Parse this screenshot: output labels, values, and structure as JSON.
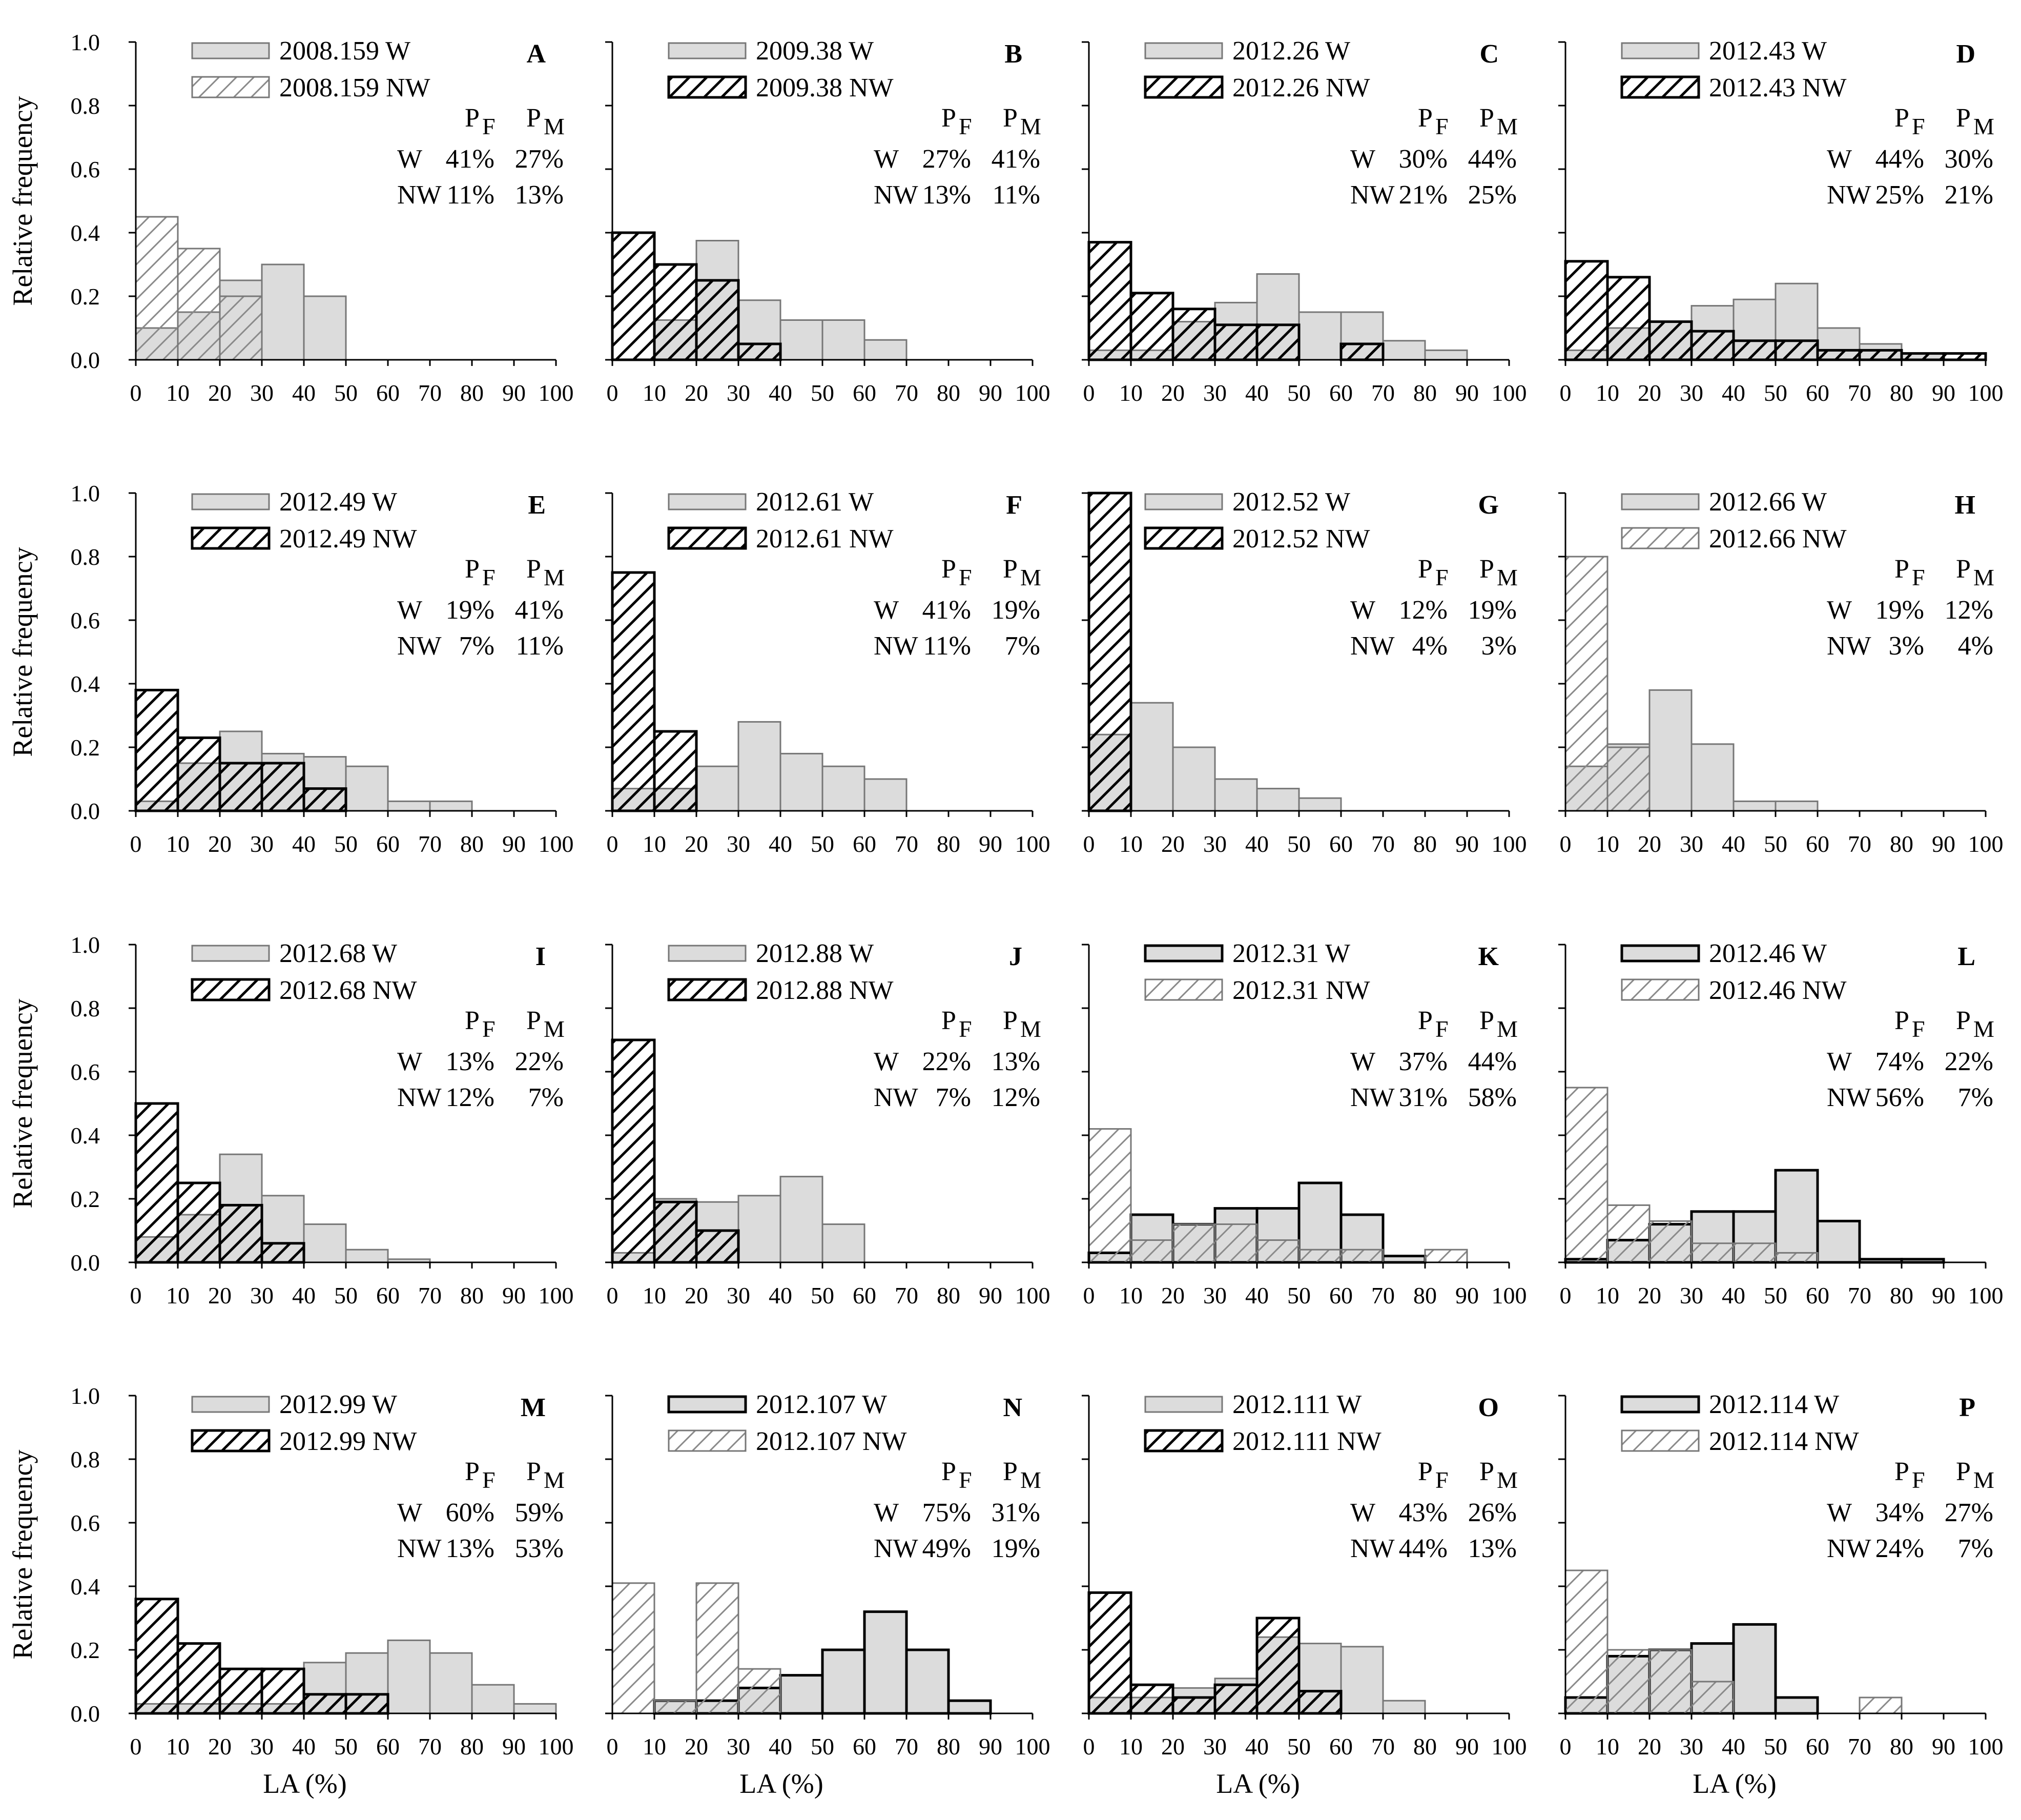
{
  "colors": {
    "bar_fill_w": "#dcdcdc",
    "bar_stroke_light": "#777777",
    "bar_stroke_dark": "#000000",
    "hatch_light": "#8a8a8a",
    "hatch_dark": "#000000",
    "axis": "#000000",
    "background": "#ffffff"
  },
  "chart_data": {
    "type": "bar",
    "layout": "4x4 grid of overlaid histograms",
    "shared_xlabel": "LA (%)",
    "shared_ylabel": "Relative frequency",
    "x_bins": [
      0,
      10,
      20,
      30,
      40,
      50,
      60,
      70,
      80,
      90,
      100
    ],
    "x_tick_labels": [
      "0",
      "10",
      "20",
      "30",
      "40",
      "50",
      "60",
      "70",
      "80",
      "90",
      "100"
    ],
    "y_tick_labels": [
      "0.0",
      "0.2",
      "0.4",
      "0.6",
      "0.8",
      "1.0"
    ],
    "xlim": [
      0,
      100
    ],
    "ylim": [
      0,
      1.0
    ],
    "stats_header": [
      "P",
      "P"
    ],
    "stats_header_subscripts": [
      "F",
      "M"
    ],
    "panels": [
      {
        "letter": "A",
        "w_name": "2008.159 W",
        "nw_name": "2008.159 NW",
        "nw_dark": false,
        "w_dark": false,
        "w_values": [
          0.1,
          0.15,
          0.25,
          0.3,
          0.2,
          0,
          0,
          0,
          0,
          0
        ],
        "nw_values": [
          0.45,
          0.35,
          0.2,
          0,
          0,
          0,
          0,
          0,
          0,
          0
        ],
        "stats": [
          {
            "label": "W",
            "pf": "41%",
            "pm": "27%"
          },
          {
            "label": "NW",
            "pf": "11%",
            "pm": "13%"
          }
        ]
      },
      {
        "letter": "B",
        "w_name": "2009.38 W",
        "nw_name": "2009.38 NW",
        "nw_dark": true,
        "w_dark": false,
        "w_values": [
          0,
          0.125,
          0.375,
          0.1875,
          0.125,
          0.125,
          0.0625,
          0,
          0,
          0
        ],
        "nw_values": [
          0.4,
          0.3,
          0.25,
          0.05,
          0,
          0,
          0,
          0,
          0,
          0
        ],
        "stats": [
          {
            "label": "W",
            "pf": "27%",
            "pm": "41%"
          },
          {
            "label": "NW",
            "pf": "13%",
            "pm": "11%"
          }
        ]
      },
      {
        "letter": "C",
        "w_name": "2012.26 W",
        "nw_name": "2012.26 NW",
        "nw_dark": true,
        "w_dark": false,
        "w_values": [
          0.03,
          0.03,
          0.12,
          0.18,
          0.27,
          0.15,
          0.15,
          0.06,
          0.03,
          0
        ],
        "nw_values": [
          0.37,
          0.21,
          0.16,
          0.11,
          0.11,
          0,
          0.05,
          0,
          0,
          0
        ],
        "stats": [
          {
            "label": "W",
            "pf": "30%",
            "pm": "44%"
          },
          {
            "label": "NW",
            "pf": "21%",
            "pm": "25%"
          }
        ]
      },
      {
        "letter": "D",
        "w_name": "2012.43 W",
        "nw_name": "2012.43 NW",
        "nw_dark": true,
        "w_dark": false,
        "w_values": [
          0.03,
          0.1,
          0.12,
          0.17,
          0.19,
          0.24,
          0.1,
          0.05,
          0.02,
          0
        ],
        "nw_values": [
          0.31,
          0.26,
          0.12,
          0.09,
          0.06,
          0.06,
          0.03,
          0.03,
          0.02,
          0.02
        ],
        "stats": [
          {
            "label": "W",
            "pf": "44%",
            "pm": "30%"
          },
          {
            "label": "NW",
            "pf": "25%",
            "pm": "21%"
          }
        ]
      },
      {
        "letter": "E",
        "w_name": "2012.49 W",
        "nw_name": "2012.49 NW",
        "nw_dark": true,
        "w_dark": false,
        "w_values": [
          0.03,
          0.15,
          0.25,
          0.18,
          0.17,
          0.14,
          0.03,
          0.03,
          0,
          0
        ],
        "nw_values": [
          0.38,
          0.23,
          0.15,
          0.15,
          0.07,
          0,
          0,
          0,
          0,
          0
        ],
        "stats": [
          {
            "label": "W",
            "pf": "19%",
            "pm": "41%"
          },
          {
            "label": "NW",
            "pf": "7%",
            "pm": "11%"
          }
        ]
      },
      {
        "letter": "F",
        "w_name": "2012.61 W",
        "nw_name": "2012.61 NW",
        "nw_dark": true,
        "w_dark": false,
        "w_values": [
          0.07,
          0.07,
          0.14,
          0.28,
          0.18,
          0.14,
          0.1,
          0,
          0,
          0
        ],
        "nw_values": [
          0.75,
          0.25,
          0,
          0,
          0,
          0,
          0,
          0,
          0,
          0
        ],
        "stats": [
          {
            "label": "W",
            "pf": "41%",
            "pm": "19%"
          },
          {
            "label": "NW",
            "pf": "11%",
            "pm": "7%"
          }
        ]
      },
      {
        "letter": "G",
        "w_name": "2012.52 W",
        "nw_name": "2012.52 NW",
        "nw_dark": true,
        "w_dark": false,
        "w_values": [
          0.24,
          0.34,
          0.2,
          0.1,
          0.07,
          0.04,
          0,
          0,
          0,
          0
        ],
        "nw_values": [
          1.0,
          0,
          0,
          0,
          0,
          0,
          0,
          0,
          0,
          0
        ],
        "stats": [
          {
            "label": "W",
            "pf": "12%",
            "pm": "19%"
          },
          {
            "label": "NW",
            "pf": "4%",
            "pm": "3%"
          }
        ]
      },
      {
        "letter": "H",
        "w_name": "2012.66 W",
        "nw_name": "2012.66 NW",
        "nw_dark": false,
        "w_dark": false,
        "w_values": [
          0.14,
          0.21,
          0.38,
          0.21,
          0.03,
          0.03,
          0,
          0,
          0,
          0
        ],
        "nw_values": [
          0.8,
          0.2,
          0,
          0,
          0,
          0,
          0,
          0,
          0,
          0
        ],
        "stats": [
          {
            "label": "W",
            "pf": "19%",
            "pm": "12%"
          },
          {
            "label": "NW",
            "pf": "3%",
            "pm": "4%"
          }
        ]
      },
      {
        "letter": "I",
        "w_name": "2012.68 W",
        "nw_name": "2012.68 NW",
        "nw_dark": true,
        "w_dark": false,
        "w_values": [
          0.08,
          0.15,
          0.34,
          0.21,
          0.12,
          0.04,
          0.01,
          0,
          0,
          0
        ],
        "nw_values": [
          0.5,
          0.25,
          0.18,
          0.06,
          0,
          0,
          0,
          0,
          0,
          0
        ],
        "stats": [
          {
            "label": "W",
            "pf": "13%",
            "pm": "22%"
          },
          {
            "label": "NW",
            "pf": "12%",
            "pm": "7%"
          }
        ]
      },
      {
        "letter": "J",
        "w_name": "2012.88 W",
        "nw_name": "2012.88 NW",
        "nw_dark": true,
        "w_dark": false,
        "w_values": [
          0.03,
          0.2,
          0.19,
          0.21,
          0.27,
          0.12,
          0,
          0,
          0,
          0
        ],
        "nw_values": [
          0.7,
          0.19,
          0.1,
          0,
          0,
          0,
          0,
          0,
          0,
          0
        ],
        "stats": [
          {
            "label": "W",
            "pf": "22%",
            "pm": "13%"
          },
          {
            "label": "NW",
            "pf": "7%",
            "pm": "12%"
          }
        ]
      },
      {
        "letter": "K",
        "w_name": "2012.31 W",
        "nw_name": "2012.31 NW",
        "nw_dark": false,
        "w_dark": true,
        "w_values": [
          0.03,
          0.15,
          0.12,
          0.17,
          0.17,
          0.25,
          0.15,
          0.02,
          0,
          0
        ],
        "nw_values": [
          0.42,
          0.07,
          0.12,
          0.12,
          0.07,
          0.04,
          0.04,
          0,
          0.04,
          0
        ],
        "stats": [
          {
            "label": "W",
            "pf": "37%",
            "pm": "44%"
          },
          {
            "label": "NW",
            "pf": "31%",
            "pm": "58%"
          }
        ]
      },
      {
        "letter": "L",
        "w_name": "2012.46 W",
        "nw_name": "2012.46 NW",
        "nw_dark": false,
        "w_dark": true,
        "w_values": [
          0.01,
          0.07,
          0.12,
          0.16,
          0.16,
          0.29,
          0.13,
          0.01,
          0.01,
          0
        ],
        "nw_values": [
          0.55,
          0.18,
          0.13,
          0.06,
          0.06,
          0.03,
          0,
          0,
          0,
          0
        ],
        "stats": [
          {
            "label": "W",
            "pf": "74%",
            "pm": "22%"
          },
          {
            "label": "NW",
            "pf": "56%",
            "pm": "7%"
          }
        ]
      },
      {
        "letter": "M",
        "w_name": "2012.99 W",
        "nw_name": "2012.99 NW",
        "nw_dark": true,
        "w_dark": false,
        "w_values": [
          0.03,
          0.03,
          0.03,
          0.03,
          0.16,
          0.19,
          0.23,
          0.19,
          0.09,
          0.03
        ],
        "nw_values": [
          0.36,
          0.22,
          0.14,
          0.14,
          0.06,
          0.06,
          0,
          0,
          0,
          0
        ],
        "stats": [
          {
            "label": "W",
            "pf": "60%",
            "pm": "59%"
          },
          {
            "label": "NW",
            "pf": "13%",
            "pm": "53%"
          }
        ]
      },
      {
        "letter": "N",
        "w_name": "2012.107 W",
        "nw_name": "2012.107 NW",
        "nw_dark": false,
        "w_dark": true,
        "w_values": [
          0,
          0.04,
          0.04,
          0.08,
          0.12,
          0.2,
          0.32,
          0.2,
          0.04,
          0
        ],
        "nw_values": [
          0.41,
          0.04,
          0.41,
          0.14,
          0,
          0,
          0,
          0,
          0,
          0
        ],
        "stats": [
          {
            "label": "W",
            "pf": "75%",
            "pm": "31%"
          },
          {
            "label": "NW",
            "pf": "49%",
            "pm": "19%"
          }
        ]
      },
      {
        "letter": "O",
        "w_name": "2012.111 W",
        "nw_name": "2012.111 NW",
        "nw_dark": true,
        "w_dark": false,
        "w_values": [
          0.05,
          0.05,
          0.08,
          0.11,
          0.24,
          0.22,
          0.21,
          0.04,
          0,
          0
        ],
        "nw_values": [
          0.38,
          0.09,
          0.05,
          0.09,
          0.3,
          0.07,
          0,
          0,
          0,
          0
        ],
        "stats": [
          {
            "label": "W",
            "pf": "43%",
            "pm": "26%"
          },
          {
            "label": "NW",
            "pf": "44%",
            "pm": "13%"
          }
        ]
      },
      {
        "letter": "P",
        "w_name": "2012.114 W",
        "nw_name": "2012.114 NW",
        "nw_dark": false,
        "w_dark": true,
        "w_values": [
          0.05,
          0.18,
          0.2,
          0.22,
          0.28,
          0.05,
          0,
          0,
          0,
          0
        ],
        "nw_values": [
          0.45,
          0.2,
          0.2,
          0.1,
          0,
          0,
          0,
          0.05,
          0,
          0
        ],
        "stats": [
          {
            "label": "W",
            "pf": "34%",
            "pm": "27%"
          },
          {
            "label": "NW",
            "pf": "24%",
            "pm": "7%"
          }
        ]
      }
    ]
  }
}
